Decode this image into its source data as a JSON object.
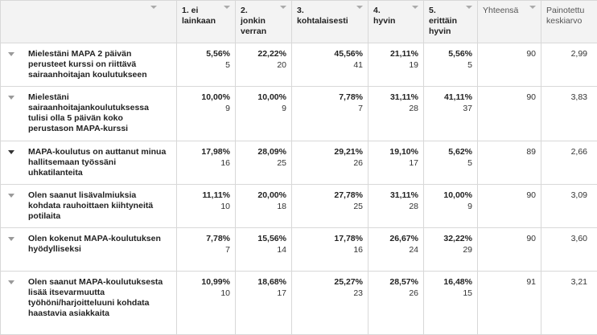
{
  "columns": [
    {
      "label": "1. ei\nlainkaan"
    },
    {
      "label": "2.\njonkin\nverran"
    },
    {
      "label": "3.\nkohtalaisesti"
    },
    {
      "label": "4.\nhyvin"
    },
    {
      "label": "5.\nerittäin\nhyvin"
    },
    {
      "label": "Yhteensä"
    },
    {
      "label": "Painotettu\nkeskiarvo"
    }
  ],
  "rows": [
    {
      "question": "Mielestäni MAPA 2 päivän perusteet kurssi on riittävä sairaanhoitajan koulutukseen",
      "cells": [
        {
          "pct": "5,56%",
          "n": "5"
        },
        {
          "pct": "22,22%",
          "n": "20"
        },
        {
          "pct": "45,56%",
          "n": "41"
        },
        {
          "pct": "21,11%",
          "n": "19"
        },
        {
          "pct": "5,56%",
          "n": "5"
        }
      ],
      "total": "90",
      "avg": "2,99"
    },
    {
      "question": "Mielestäni sairaanhoitajankoulutuksessa tulisi olla 5 päivän koko perustason MAPA-kurssi",
      "cells": [
        {
          "pct": "10,00%",
          "n": "9"
        },
        {
          "pct": "10,00%",
          "n": "9"
        },
        {
          "pct": "7,78%",
          "n": "7"
        },
        {
          "pct": "31,11%",
          "n": "28"
        },
        {
          "pct": "41,11%",
          "n": "37"
        }
      ],
      "total": "90",
      "avg": "3,83"
    },
    {
      "question": "MAPA-koulutus on auttanut minua hallitsemaan työssäni uhkatilanteita",
      "cells": [
        {
          "pct": "17,98%",
          "n": "16"
        },
        {
          "pct": "28,09%",
          "n": "25"
        },
        {
          "pct": "29,21%",
          "n": "26"
        },
        {
          "pct": "19,10%",
          "n": "17"
        },
        {
          "pct": "5,62%",
          "n": "5"
        }
      ],
      "total": "89",
      "avg": "2,66"
    },
    {
      "question": "Olen saanut lisävalmiuksia kohdata rauhoittaen kiihtyneitä potilaita",
      "cells": [
        {
          "pct": "11,11%",
          "n": "10"
        },
        {
          "pct": "20,00%",
          "n": "18"
        },
        {
          "pct": "27,78%",
          "n": "25"
        },
        {
          "pct": "31,11%",
          "n": "28"
        },
        {
          "pct": "10,00%",
          "n": "9"
        }
      ],
      "total": "90",
      "avg": "3,09"
    },
    {
      "question": "Olen kokenut MAPA-koulutuksen hyödylliseksi",
      "cells": [
        {
          "pct": "7,78%",
          "n": "7"
        },
        {
          "pct": "15,56%",
          "n": "14"
        },
        {
          "pct": "17,78%",
          "n": "16"
        },
        {
          "pct": "26,67%",
          "n": "24"
        },
        {
          "pct": "32,22%",
          "n": "29"
        }
      ],
      "total": "90",
      "avg": "3,60"
    },
    {
      "question": "Olen saanut MAPA-koulutuksesta lisää itsevarmuutta työhöni/harjoitteluuni kohdata haastavia asiakkaita",
      "cells": [
        {
          "pct": "10,99%",
          "n": "10"
        },
        {
          "pct": "18,68%",
          "n": "17"
        },
        {
          "pct": "25,27%",
          "n": "23"
        },
        {
          "pct": "28,57%",
          "n": "26"
        },
        {
          "pct": "16,48%",
          "n": "15"
        }
      ],
      "total": "91",
      "avg": "3,21"
    }
  ]
}
